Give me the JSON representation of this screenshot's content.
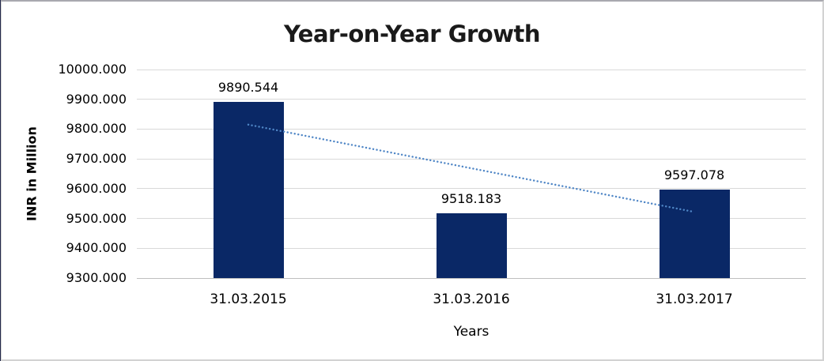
{
  "chart_data": {
    "type": "bar",
    "title": "Year-on-Year Growth",
    "xlabel": "Years",
    "ylabel": "INR in Million",
    "categories": [
      "31.03.2015",
      "31.03.2016",
      "31.03.2017"
    ],
    "values": [
      9890.544,
      9518.183,
      9597.078
    ],
    "data_labels": [
      "9890.544",
      "9518.183",
      "9597.078"
    ],
    "ylim": [
      9300,
      10000
    ],
    "ytick_step": 100,
    "yticks": [
      "10000.000",
      "9900.000",
      "9800.000",
      "9700.000",
      "9600.000",
      "9500.000",
      "9400.000",
      "9300.000"
    ],
    "grid": true,
    "legend": "none",
    "trendline": {
      "type": "linear",
      "style": "dotted",
      "start_value": 9815,
      "end_value": 9522
    },
    "colors": {
      "bar": "#0a2866",
      "trendline": "#4f86c6",
      "gridline": "#d9d9d9",
      "axis_line": "#bfbfbf",
      "title": "#1a1a1a",
      "text": "#000000"
    }
  }
}
